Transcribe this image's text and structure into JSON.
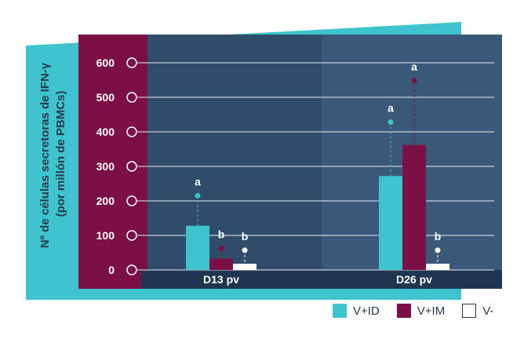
{
  "colors": {
    "teal": "#3ec4cf",
    "maroon": "#7a1046",
    "white": "#ffffff",
    "panel_dark": "#2f4c6b",
    "panel_light": "#3a5878",
    "axis_bar": "#1f3551",
    "text_dark": "#2b3a4a"
  },
  "chart_data": {
    "type": "bar",
    "ylabel_line1": "Nº de células secretoras de IFN-γ",
    "ylabel_line2": "(por millón de PBMCs)",
    "categories": [
      "D13 pv",
      "D26 pv"
    ],
    "ylim": [
      0,
      600
    ],
    "yticks": [
      "0",
      "100",
      "200",
      "300",
      "400",
      "500",
      "600"
    ],
    "grid": true,
    "legend_position": "bottom-right",
    "series": [
      {
        "name": "V+ID",
        "color": "#3ec4cf",
        "values": [
          128,
          272
        ],
        "upper": [
          215,
          428
        ],
        "letters": [
          "a",
          "a"
        ]
      },
      {
        "name": "V+IM",
        "color": "#7a1046",
        "values": [
          33,
          362
        ],
        "upper": [
          62,
          548
        ],
        "letters": [
          "b",
          "a"
        ]
      },
      {
        "name": "V-",
        "color": "#ffffff",
        "values": [
          18,
          18
        ],
        "upper": [
          57,
          57
        ],
        "letters": [
          "b",
          "b"
        ]
      }
    ]
  }
}
